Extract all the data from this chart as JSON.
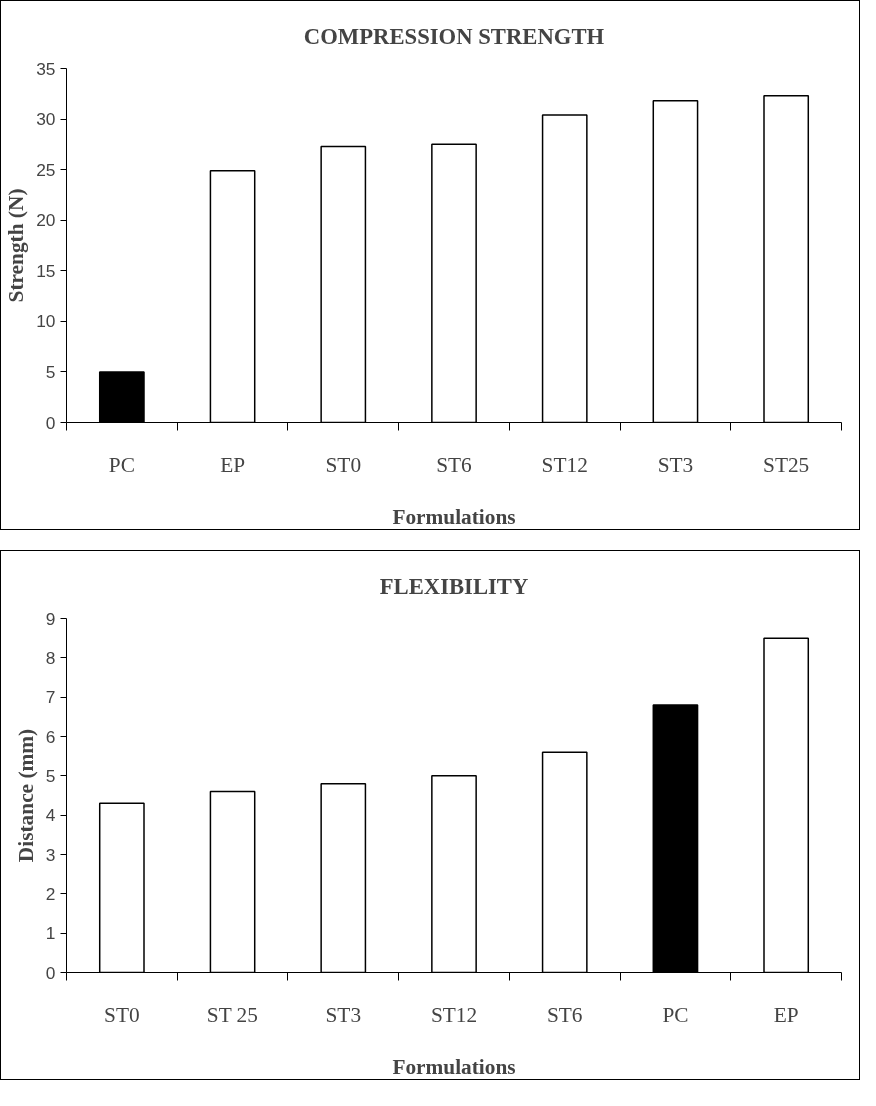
{
  "chart_data": [
    {
      "type": "bar",
      "title": "COMPRESSION STRENGTH",
      "xlabel": "Formulations",
      "ylabel": "Strength (N)",
      "categories": [
        "PC",
        "EP",
        "ST0",
        "ST6",
        "ST12",
        "ST3",
        "ST25"
      ],
      "values": [
        5.0,
        24.9,
        27.3,
        27.5,
        30.4,
        31.8,
        32.3
      ],
      "colors": [
        "#000000",
        "#ffffff",
        "#ffffff",
        "#ffffff",
        "#ffffff",
        "#ffffff",
        "#ffffff"
      ],
      "ylim": [
        0,
        35
      ],
      "yticks": [
        0,
        5,
        10,
        15,
        20,
        25,
        30,
        35
      ],
      "grid": false,
      "legend": false
    },
    {
      "type": "bar",
      "title": "FLEXIBILITY",
      "xlabel": "Formulations",
      "ylabel": "Distance (mm)",
      "categories": [
        "ST0",
        "ST 25",
        "ST3",
        "ST12",
        "ST6",
        "PC",
        "EP"
      ],
      "values": [
        4.3,
        4.6,
        4.8,
        5.0,
        5.6,
        6.8,
        8.5
      ],
      "colors": [
        "#ffffff",
        "#ffffff",
        "#ffffff",
        "#ffffff",
        "#ffffff",
        "#000000",
        "#ffffff"
      ],
      "ylim": [
        0,
        9
      ],
      "yticks": [
        0,
        1,
        2,
        3,
        4,
        5,
        6,
        7,
        8,
        9
      ],
      "grid": false,
      "legend": false
    }
  ]
}
